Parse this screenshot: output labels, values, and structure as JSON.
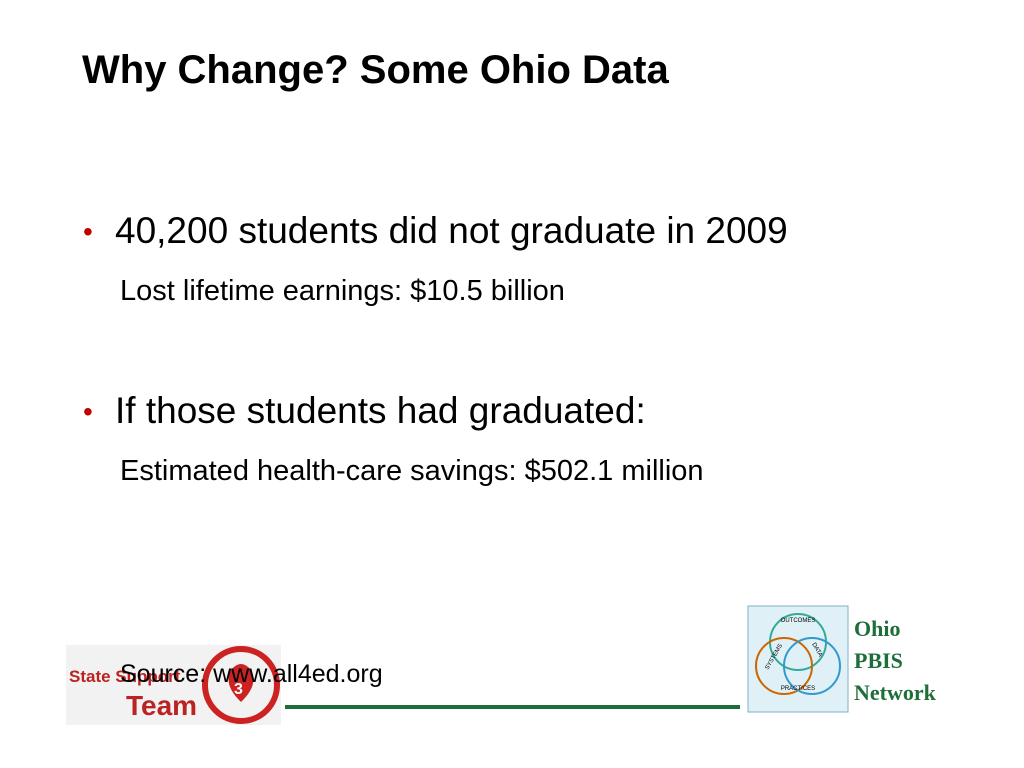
{
  "title": "Why Change?  Some Ohio Data",
  "bullets": [
    {
      "text": "40,200 students did not graduate in 2009",
      "detail": "Lost lifetime earnings: $10.5 billion"
    },
    {
      "text": "If those students had graduated:",
      "detail": "Estimated health-care savings: $502.1 million"
    }
  ],
  "source": "Source: www.all4ed.org",
  "logos": {
    "sst": {
      "line1": "State Support",
      "line2": "Team",
      "number": "3"
    },
    "pbis": {
      "circles": [
        "OUTCOMES",
        "SYSTEMS",
        "DATA",
        "PRACTICES"
      ],
      "name": [
        "Ohio",
        "PBIS",
        "Network"
      ]
    }
  }
}
